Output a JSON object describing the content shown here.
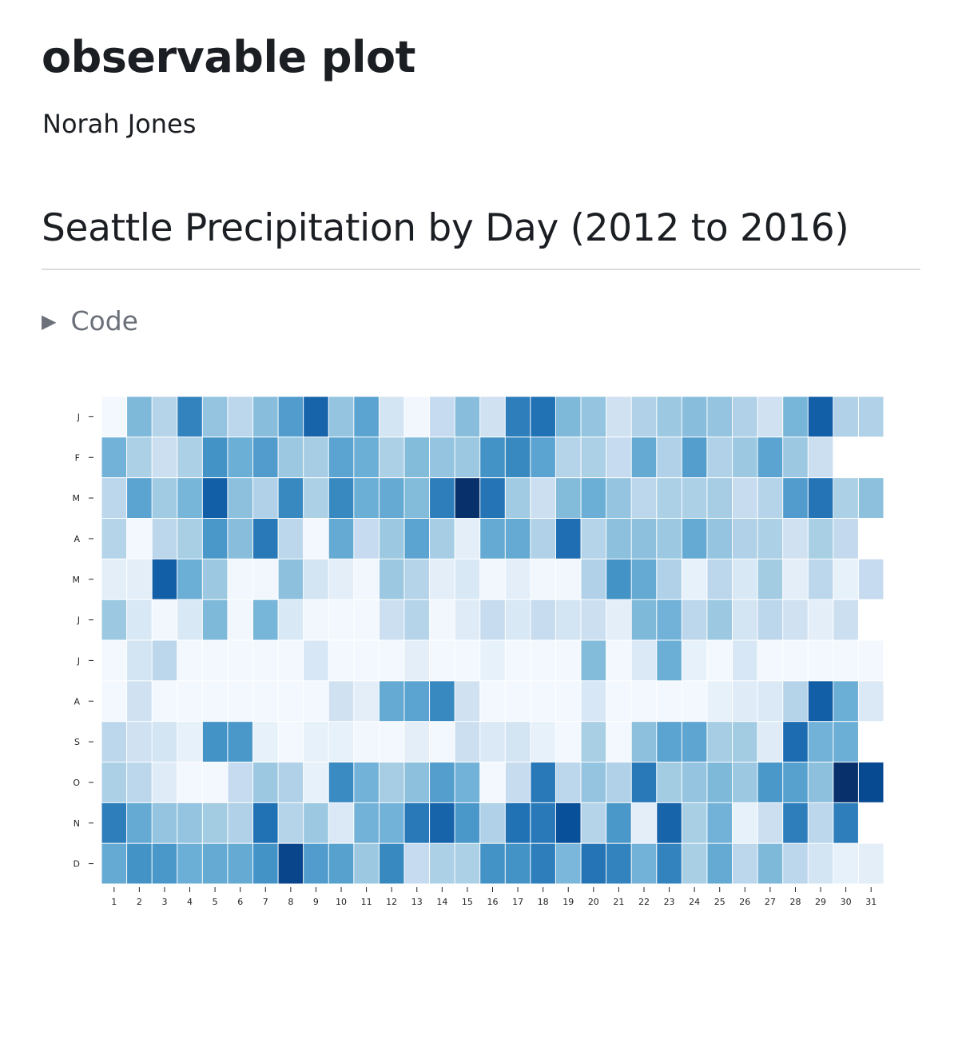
{
  "header": {
    "title": "observable plot",
    "author": "Norah Jones"
  },
  "section": {
    "heading": "Seattle Precipitation by Day (2012 to 2016)",
    "code_toggle_label": "Code",
    "code_toggle_icon": "triangle-right-icon"
  },
  "chart_data": {
    "type": "heatmap",
    "title": "",
    "xlabel": "",
    "ylabel": "",
    "color_scheme": "Blues",
    "value_scale": "relative color intensity 0-100 (no legend shown)",
    "grid": false,
    "legend": "none",
    "x_categories": [
      "1",
      "2",
      "3",
      "4",
      "5",
      "6",
      "7",
      "8",
      "9",
      "10",
      "11",
      "12",
      "13",
      "14",
      "15",
      "16",
      "17",
      "18",
      "19",
      "20",
      "21",
      "22",
      "23",
      "24",
      "25",
      "26",
      "27",
      "28",
      "29",
      "30",
      "31"
    ],
    "y_categories": [
      "J",
      "F",
      "M",
      "A",
      "M",
      "J",
      "J",
      "A",
      "S",
      "O",
      "N",
      "D"
    ],
    "values": [
      [
        2,
        45,
        30,
        68,
        40,
        28,
        43,
        58,
        80,
        40,
        55,
        18,
        3,
        25,
        43,
        20,
        70,
        75,
        45,
        40,
        20,
        32,
        38,
        43,
        40,
        32,
        20,
        47,
        82,
        32,
        32
      ],
      [
        48,
        33,
        22,
        33,
        62,
        50,
        58,
        38,
        35,
        55,
        50,
        33,
        44,
        40,
        38,
        62,
        66,
        55,
        30,
        33,
        25,
        52,
        32,
        57,
        32,
        38,
        55,
        38,
        22
      ],
      [
        28,
        55,
        37,
        47,
        82,
        42,
        32,
        66,
        33,
        66,
        50,
        52,
        44,
        70,
        100,
        74,
        37,
        22,
        44,
        50,
        40,
        28,
        33,
        33,
        35,
        24,
        30,
        58,
        74,
        33,
        42
      ],
      [
        30,
        2,
        28,
        34,
        60,
        43,
        72,
        28,
        2,
        52,
        25,
        38,
        55,
        35,
        10,
        52,
        52,
        32,
        76,
        30,
        42,
        42,
        38,
        52,
        40,
        32,
        33,
        20,
        34,
        26
      ],
      [
        10,
        10,
        82,
        50,
        38,
        3,
        3,
        42,
        18,
        10,
        3,
        38,
        30,
        10,
        15,
        3,
        10,
        3,
        3,
        32,
        62,
        52,
        32,
        8,
        28,
        15,
        36,
        10,
        28,
        8,
        25
      ],
      [
        38,
        15,
        3,
        15,
        45,
        3,
        47,
        15,
        3,
        2,
        2,
        22,
        30,
        3,
        12,
        24,
        15,
        24,
        18,
        22,
        10,
        45,
        48,
        28,
        38,
        18,
        28,
        20,
        10,
        22
      ],
      [
        2,
        18,
        28,
        2,
        2,
        2,
        2,
        2,
        16,
        2,
        2,
        2,
        10,
        2,
        2,
        8,
        2,
        2,
        2,
        44,
        2,
        14,
        50,
        8,
        2,
        16,
        2,
        2,
        2,
        2,
        2
      ],
      [
        2,
        20,
        2,
        2,
        2,
        2,
        2,
        2,
        2,
        20,
        10,
        52,
        55,
        66,
        20,
        2,
        2,
        2,
        2,
        16,
        2,
        2,
        2,
        2,
        8,
        12,
        14,
        30,
        82,
        50,
        14
      ],
      [
        28,
        20,
        18,
        8,
        62,
        60,
        8,
        2,
        8,
        8,
        3,
        2,
        10,
        2,
        22,
        14,
        18,
        8,
        2,
        34,
        2,
        42,
        55,
        54,
        35,
        36,
        12,
        77,
        48,
        50
      ],
      [
        33,
        28,
        12,
        2,
        2,
        25,
        38,
        32,
        8,
        65,
        48,
        35,
        42,
        57,
        48,
        2,
        24,
        72,
        28,
        40,
        32,
        72,
        36,
        40,
        45,
        38,
        60,
        56,
        42,
        100,
        90
      ],
      [
        70,
        52,
        40,
        40,
        36,
        32,
        75,
        30,
        38,
        14,
        48,
        48,
        72,
        80,
        60,
        32,
        75,
        72,
        88,
        30,
        60,
        10,
        80,
        34,
        48,
        8,
        22,
        70,
        28,
        70
      ],
      [
        52,
        62,
        60,
        50,
        52,
        52,
        62,
        92,
        58,
        56,
        38,
        66,
        25,
        33,
        33,
        62,
        62,
        70,
        46,
        74,
        68,
        48,
        68,
        34,
        52,
        28,
        45,
        28,
        18,
        8,
        10
      ]
    ]
  }
}
